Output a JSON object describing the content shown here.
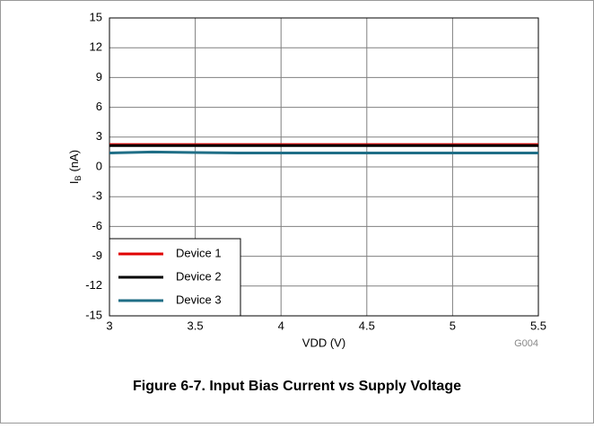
{
  "chart_data": {
    "type": "line",
    "ylabel_main": "I",
    "ylabel_sub": "B",
    "ylabel_unit": "(nA)",
    "xlabel": "VDD (V)",
    "annotation": "G004",
    "caption": "Figure 6-7. Input Bias Current vs Supply Voltage",
    "x": [
      3,
      3.25,
      3.5,
      3.75,
      4,
      4.25,
      4.5,
      4.75,
      5,
      5.25,
      5.5
    ],
    "series": [
      {
        "name": "Device 1",
        "color": "#e00000",
        "values": [
          2.25,
          2.25,
          2.25,
          2.25,
          2.25,
          2.25,
          2.25,
          2.25,
          2.25,
          2.25,
          2.25
        ]
      },
      {
        "name": "Device 2",
        "color": "#000000",
        "values": [
          2.15,
          2.15,
          2.15,
          2.15,
          2.15,
          2.15,
          2.15,
          2.15,
          2.15,
          2.15,
          2.15
        ]
      },
      {
        "name": "Device 3",
        "color": "#1f6e86",
        "values": [
          1.4,
          1.5,
          1.45,
          1.4,
          1.4,
          1.4,
          1.4,
          1.4,
          1.4,
          1.4,
          1.4
        ]
      }
    ],
    "xlim": [
      3,
      5.5
    ],
    "xticks": [
      3,
      3.5,
      4,
      4.5,
      5,
      5.5
    ],
    "ylim": [
      -15,
      15
    ],
    "yticks": [
      -15,
      -12,
      -9,
      -6,
      -3,
      0,
      3,
      6,
      9,
      12,
      15
    ],
    "grid": true,
    "legend": "lower left"
  }
}
